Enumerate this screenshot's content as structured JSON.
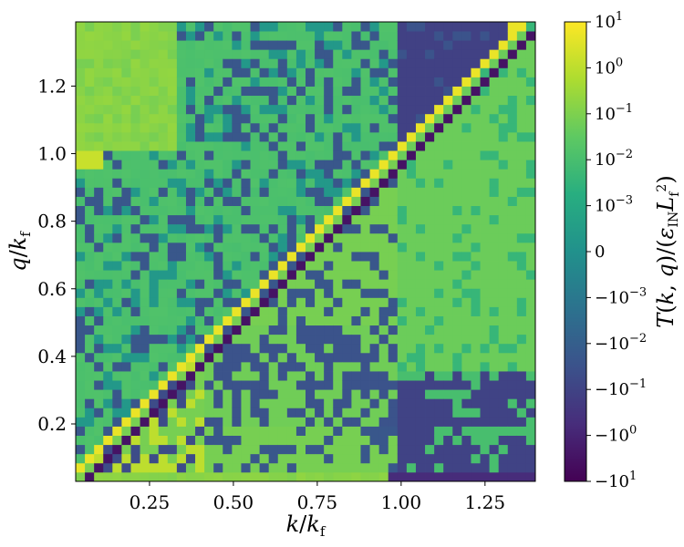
{
  "chart_data": {
    "type": "heatmap",
    "title": "",
    "xlabel": "k/k_f",
    "ylabel": "q/k_f",
    "colorbar_label": "T(k, q)/(ε_IN L_f²)",
    "xlim": [
      0.03,
      1.4
    ],
    "ylim": [
      0.03,
      1.39
    ],
    "x_ticks": [
      0.25,
      0.5,
      0.75,
      1.0,
      1.25
    ],
    "x_tick_labels": [
      "0.25",
      "0.50",
      "0.75",
      "1.00",
      "1.25"
    ],
    "y_ticks": [
      0.2,
      0.4,
      0.6,
      0.8,
      1.0,
      1.2
    ],
    "y_tick_labels": [
      "0.2",
      "0.4",
      "0.6",
      "0.8",
      "1.0",
      "1.2"
    ],
    "colorscale": "viridis",
    "color_scale_type": "symmetric-log",
    "colorbar_range": [
      -10,
      10
    ],
    "colorbar_ticks": [
      {
        "label": "10",
        "exp": "1"
      },
      {
        "label": "10",
        "exp": "0"
      },
      {
        "label": "10",
        "exp": "−1"
      },
      {
        "label": "10",
        "exp": "−2"
      },
      {
        "label": "10",
        "exp": "−3"
      },
      {
        "label": "0",
        "exp": ""
      },
      {
        "label": "−10",
        "exp": "−3"
      },
      {
        "label": "−10",
        "exp": "−2"
      },
      {
        "label": "−10",
        "exp": "−1"
      },
      {
        "label": "−10",
        "exp": "0"
      },
      {
        "label": "−10",
        "exp": "1"
      }
    ],
    "grid_n": 50,
    "regions": [
      {
        "name": "diagonal positive band (q ≈ k + 0.03)",
        "value": 5.0
      },
      {
        "name": "diagonal negative band (q ≈ k − 0.03)",
        "value": -3.0
      },
      {
        "name": "q > k, k < 1",
        "value": 0.01
      },
      {
        "name": "q > 1, k < 0.3",
        "value": 0.1
      },
      {
        "name": "q < k, k < 1",
        "value": 0.08
      },
      {
        "name": "q > k, k > 1",
        "value": -0.1
      },
      {
        "name": "q < k, k > 1",
        "value": 0.05
      },
      {
        "name": "q < 0.1, k > 1",
        "value": -0.5
      }
    ]
  }
}
